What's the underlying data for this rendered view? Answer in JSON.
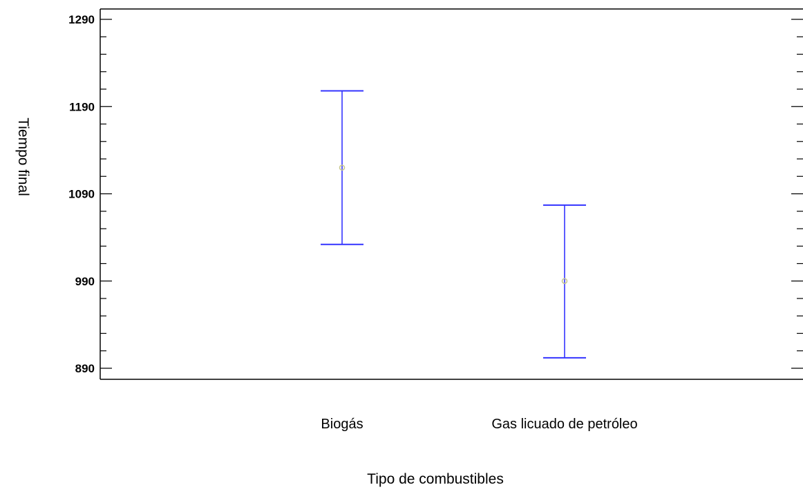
{
  "chart_data": {
    "type": "errorbar",
    "title": "",
    "xlabel": "Tipo de combustibles",
    "ylabel": "Tiempo final",
    "categories": [
      "Biogás",
      "Gas licuado de petróleo"
    ],
    "series": [
      {
        "means": [
          1120,
          990
        ],
        "lower": [
          1032,
          902
        ],
        "upper": [
          1208,
          1077
        ]
      }
    ],
    "ylim": [
      880,
      1300
    ],
    "yticks": [
      890,
      990,
      1090,
      1190,
      1290
    ],
    "yticklabels": [
      "1290",
      "1190",
      "1090",
      "990",
      "890"
    ],
    "minor_ticks_per_major": 5,
    "grid": false,
    "colors": {
      "interval": "#3333ff",
      "mean_marker": "#c8c890",
      "axis": "#000000"
    }
  }
}
